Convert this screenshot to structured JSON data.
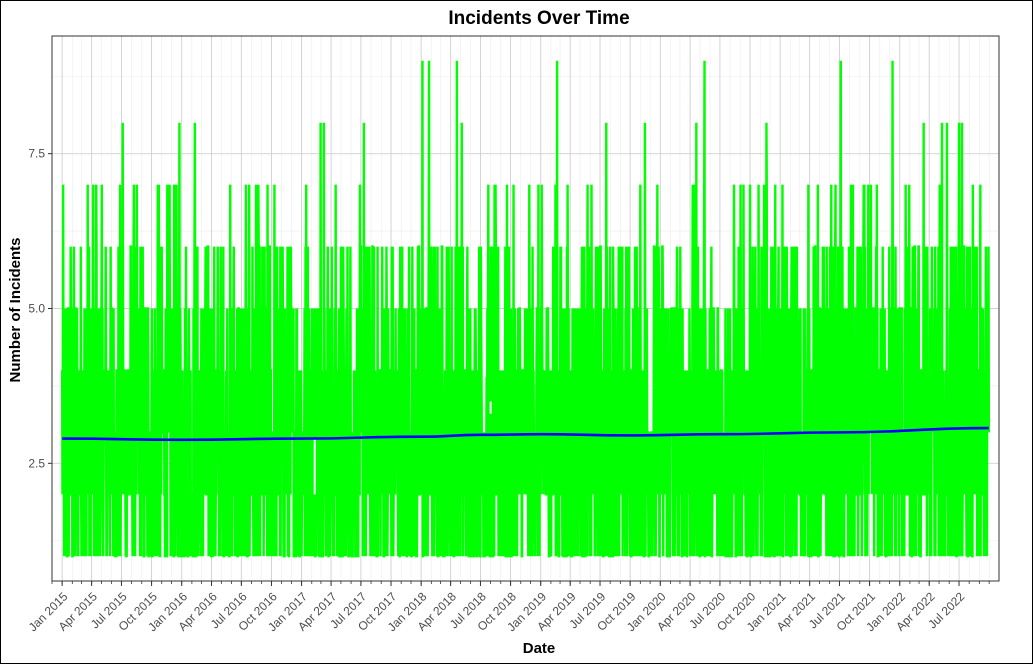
{
  "chart_data": {
    "type": "line",
    "title": "Incidents Over Time",
    "xlabel": "Date",
    "ylabel": "Number of Incidents",
    "x_range": [
      "2014-12-01",
      "2022-10-31"
    ],
    "ylim": [
      0.6,
      9.4
    ],
    "y_ticks": [
      2.5,
      5.0,
      7.5
    ],
    "y_tick_labels": [
      "2.5",
      "5.0",
      "7.5"
    ],
    "x_ticks": [
      "2015-01-01",
      "2015-04-01",
      "2015-07-01",
      "2015-10-01",
      "2016-01-01",
      "2016-04-01",
      "2016-07-01",
      "2016-10-01",
      "2017-01-01",
      "2017-04-01",
      "2017-07-01",
      "2017-10-01",
      "2018-01-01",
      "2018-04-01",
      "2018-07-01",
      "2018-10-01",
      "2019-01-01",
      "2019-04-01",
      "2019-07-01",
      "2019-10-01",
      "2020-01-01",
      "2020-04-01",
      "2020-07-01",
      "2020-10-01",
      "2021-01-01",
      "2021-04-01",
      "2021-07-01",
      "2021-10-01",
      "2022-01-01",
      "2022-04-01",
      "2022-07-01"
    ],
    "x_tick_labels": [
      "Jan 2015",
      "Apr 2015",
      "Jul 2015",
      "Oct 2015",
      "Jan 2016",
      "Apr 2016",
      "Jul 2016",
      "Oct 2016",
      "Jan 2017",
      "Apr 2017",
      "Jul 2017",
      "Oct 2017",
      "Jan 2018",
      "Apr 2018",
      "Jul 2018",
      "Oct 2018",
      "Jan 2019",
      "Apr 2019",
      "Jul 2019",
      "Oct 2019",
      "Jan 2020",
      "Apr 2020",
      "Jul 2020",
      "Oct 2020",
      "Jan 2021",
      "Apr 2021",
      "Jul 2021",
      "Oct 2021",
      "Jan 2022",
      "Apr 2022",
      "Jul 2022"
    ],
    "grid": true,
    "legend": "none",
    "series": [
      {
        "style": "line",
        "color": "#00ff00",
        "date_range": [
          "2015-01-01",
          "2022-09-30"
        ],
        "frequency": "daily",
        "values_note_min": 1,
        "values_note_max": 9,
        "peaks": [
          {
            "x": "2015-03-20",
            "y": 7
          },
          {
            "x": "2015-04-15",
            "y": 7
          },
          {
            "x": "2015-07-05",
            "y": 8
          },
          {
            "x": "2015-10-20",
            "y": 7
          },
          {
            "x": "2015-12-25",
            "y": 8
          },
          {
            "x": "2016-02-10",
            "y": 8
          },
          {
            "x": "2016-07-25",
            "y": 7
          },
          {
            "x": "2016-10-10",
            "y": 7
          },
          {
            "x": "2017-01-15",
            "y": 7
          },
          {
            "x": "2017-02-28",
            "y": 8
          },
          {
            "x": "2017-03-10",
            "y": 8
          },
          {
            "x": "2017-07-10",
            "y": 8
          },
          {
            "x": "2018-01-05",
            "y": 9
          },
          {
            "x": "2018-01-25",
            "y": 9
          },
          {
            "x": "2018-04-20",
            "y": 9
          },
          {
            "x": "2018-05-05",
            "y": 8
          },
          {
            "x": "2019-02-20",
            "y": 9
          },
          {
            "x": "2019-07-20",
            "y": 8
          },
          {
            "x": "2019-11-15",
            "y": 8
          },
          {
            "x": "2020-04-20",
            "y": 8
          },
          {
            "x": "2020-05-15",
            "y": 9
          },
          {
            "x": "2020-11-20",
            "y": 8
          },
          {
            "x": "2021-07-05",
            "y": 9
          },
          {
            "x": "2021-12-10",
            "y": 9
          },
          {
            "x": "2022-03-15",
            "y": 8
          },
          {
            "x": "2022-05-10",
            "y": 8
          },
          {
            "x": "2022-05-25",
            "y": 8
          },
          {
            "x": "2022-07-01",
            "y": 8
          },
          {
            "x": "2022-07-10",
            "y": 8
          }
        ],
        "gaps": [
          {
            "x": "2017-02-10",
            "y_from": 2.0,
            "y_to": 2.9
          },
          {
            "x": "2018-07-15",
            "y_from": 3.9,
            "y_to": 4.0
          },
          {
            "x": "2018-08-01",
            "y_from": 3.3,
            "y_to": 3.5
          }
        ]
      },
      {
        "style": "smooth",
        "color": "#0000ff",
        "points": [
          {
            "x": "2015-01-01",
            "y": 2.9
          },
          {
            "x": "2016-01-01",
            "y": 2.88
          },
          {
            "x": "2017-01-01",
            "y": 2.9
          },
          {
            "x": "2018-01-01",
            "y": 2.93
          },
          {
            "x": "2018-07-01",
            "y": 2.96
          },
          {
            "x": "2019-01-01",
            "y": 2.97
          },
          {
            "x": "2019-10-01",
            "y": 2.95
          },
          {
            "x": "2020-07-01",
            "y": 2.97
          },
          {
            "x": "2021-07-01",
            "y": 3.0
          },
          {
            "x": "2022-09-30",
            "y": 3.07
          }
        ]
      }
    ]
  }
}
